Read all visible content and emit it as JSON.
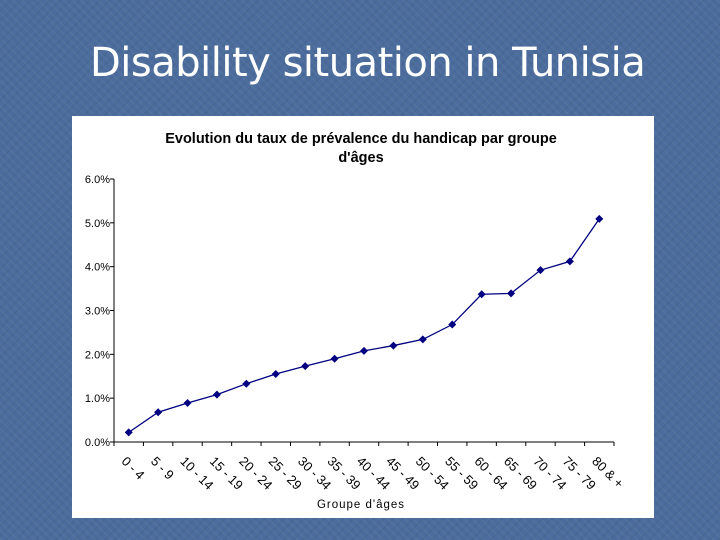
{
  "slide": {
    "title": "Disability situation in Tunisia"
  },
  "chart_data": {
    "type": "line",
    "title": "Evolution du taux de prévalence du handicap par groupe d'âges",
    "title_lines": [
      "Evolution du taux de prévalence du handicap par groupe",
      "d'âges"
    ],
    "xlabel": "Groupe d'âges",
    "ylabel": "",
    "ylim": [
      0,
      0.06
    ],
    "yticks": [
      0,
      0.01,
      0.02,
      0.03,
      0.04,
      0.05,
      0.06
    ],
    "ytick_labels": [
      "0.0%",
      "1.0%",
      "2.0%",
      "3.0%",
      "4.0%",
      "5.0%",
      "6.0%"
    ],
    "grid": false,
    "legend": "none",
    "line_color": "#000080",
    "marker": "diamond",
    "categories": [
      "0 - 4",
      "5 - 9",
      "10 - 14",
      "15 - 19",
      "20 - 24",
      "25 - 29",
      "30 - 34",
      "35 - 39",
      "40 - 44",
      "45 - 49",
      "50 - 54",
      "55 - 59",
      "60 - 64",
      "65 - 69",
      "70 - 74",
      "75 - 79",
      "80 & +"
    ],
    "series": [
      {
        "values": [
          0.0022,
          0.0068,
          0.0089,
          0.0108,
          0.0133,
          0.0155,
          0.0173,
          0.019,
          0.0208,
          0.022,
          0.0234,
          0.0268,
          0.0337,
          0.0339,
          0.0392,
          0.0412,
          0.0509
        ]
      }
    ]
  }
}
